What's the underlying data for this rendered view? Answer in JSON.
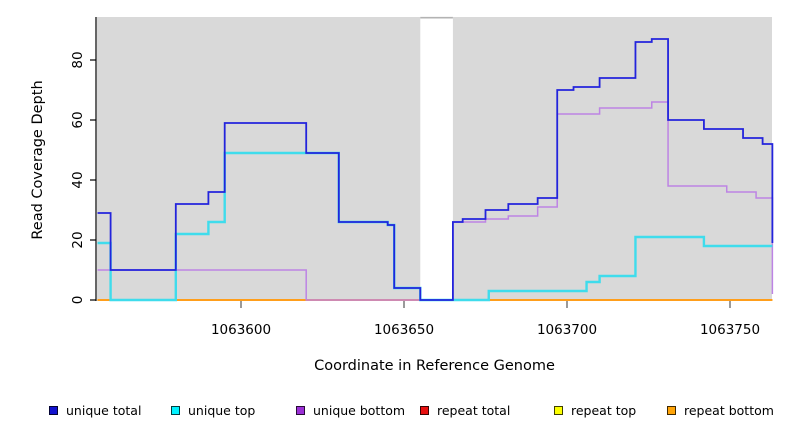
{
  "chart_data": {
    "type": "line",
    "subtype": "step-after-coverage",
    "title": "",
    "xlabel": "Coordinate in Reference Genome",
    "ylabel": "Read Coverage Depth",
    "x_ticks": [
      1063600,
      1063650,
      1063700,
      1063750
    ],
    "y_ticks": [
      0,
      20,
      40,
      60,
      80
    ],
    "x_range": [
      1063556,
      1063763
    ],
    "y_range": [
      0,
      94
    ],
    "grid": "off",
    "plot_bg_color": "#D9D9D9",
    "gap_region": {
      "x_start": 1063655,
      "x_end": 1063665,
      "color": "#FFFFFF"
    },
    "series": [
      {
        "name": "repeat total",
        "color": "#DD2222",
        "width": 1.4,
        "points": [
          [
            1063556,
            0
          ],
          [
            1063763,
            0
          ]
        ]
      },
      {
        "name": "repeat top",
        "color": "#F2E830",
        "width": 1.4,
        "points": [
          [
            1063556,
            0
          ],
          [
            1063763,
            0
          ]
        ]
      },
      {
        "name": "repeat bottom",
        "color": "#FF9E1B",
        "width": 2,
        "points": [
          [
            1063556,
            0
          ],
          [
            1063763,
            0
          ]
        ]
      },
      {
        "name": "unique bottom",
        "color": "#BD84E4",
        "width": 1.5,
        "points": [
          [
            1063556,
            10
          ],
          [
            1063620,
            0
          ],
          [
            1063665,
            26
          ],
          [
            1063675,
            27
          ],
          [
            1063682,
            28
          ],
          [
            1063691,
            31
          ],
          [
            1063697,
            62
          ],
          [
            1063710,
            64
          ],
          [
            1063726,
            66
          ],
          [
            1063731,
            38
          ],
          [
            1063749,
            36
          ],
          [
            1063758,
            34
          ],
          [
            1063763,
            2
          ]
        ]
      },
      {
        "name": "unique top",
        "color": "#3FDCEC",
        "width": 2.4,
        "points": [
          [
            1063556,
            19
          ],
          [
            1063560,
            0
          ],
          [
            1063580,
            22
          ],
          [
            1063590,
            26
          ],
          [
            1063595,
            49
          ],
          [
            1063630,
            26
          ],
          [
            1063645,
            25
          ],
          [
            1063647,
            4
          ],
          [
            1063655,
            0
          ],
          [
            1063676,
            3
          ],
          [
            1063706,
            6
          ],
          [
            1063710,
            8
          ],
          [
            1063721,
            21
          ],
          [
            1063742,
            18
          ],
          [
            1063763,
            18
          ]
        ]
      },
      {
        "name": "unique total",
        "color": "#2324DC",
        "width": 1.8,
        "points": [
          [
            1063556,
            29
          ],
          [
            1063560,
            10
          ],
          [
            1063580,
            32
          ],
          [
            1063590,
            36
          ],
          [
            1063595,
            59
          ],
          [
            1063620,
            49
          ],
          [
            1063630,
            26
          ],
          [
            1063645,
            25
          ],
          [
            1063647,
            4
          ],
          [
            1063655,
            0
          ],
          [
            1063665,
            26
          ],
          [
            1063668,
            27
          ],
          [
            1063675,
            30
          ],
          [
            1063682,
            32
          ],
          [
            1063691,
            34
          ],
          [
            1063697,
            70
          ],
          [
            1063702,
            71
          ],
          [
            1063710,
            74
          ],
          [
            1063721,
            86
          ],
          [
            1063726,
            87
          ],
          [
            1063731,
            60
          ],
          [
            1063742,
            57
          ],
          [
            1063754,
            54
          ],
          [
            1063760,
            52
          ],
          [
            1063763,
            19
          ]
        ]
      }
    ],
    "legend": [
      {
        "label": "unique total",
        "color": "#1212CE"
      },
      {
        "label": "unique top",
        "color": "#00F2FF"
      },
      {
        "label": "unique bottom",
        "color": "#9B2FD6"
      },
      {
        "label": "repeat total",
        "color": "#E81010"
      },
      {
        "label": "repeat top",
        "color": "#FCFF00"
      },
      {
        "label": "repeat bottom",
        "color": "#FFA408"
      }
    ],
    "legend_position": "bottom"
  }
}
